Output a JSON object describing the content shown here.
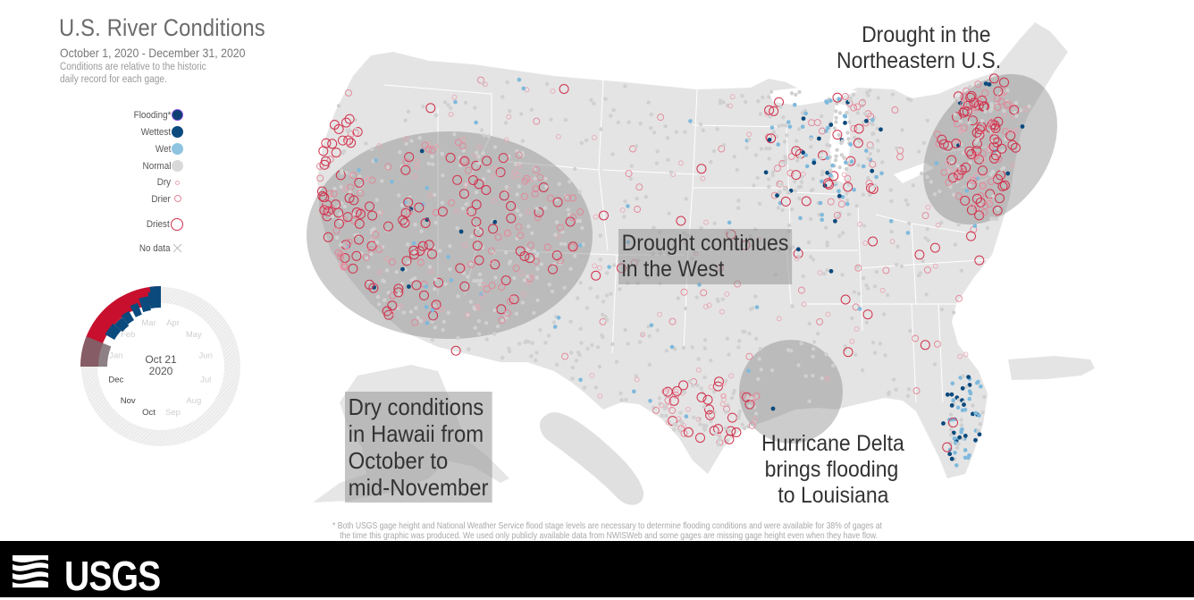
{
  "header": {
    "title": "U.S. River Conditions",
    "dates": "October 1, 2020 - December 31, 2020",
    "subtitle_line1": "Conditions are relative to the historic",
    "subtitle_line2": "daily record for each gage."
  },
  "legend": {
    "items": [
      {
        "label": "Flooding*",
        "icon": "flooding-dot-icon",
        "color": "#0b3f72",
        "stroke": "#8b4fe0"
      },
      {
        "label": "Wettest",
        "icon": "wettest-dot-icon",
        "color": "#0b4a7d"
      },
      {
        "label": "Wet",
        "icon": "wet-dot-icon",
        "color": "#8ec4e0"
      },
      {
        "label": "Normal",
        "icon": "normal-dot-icon",
        "color": "#d9d9d9"
      },
      {
        "label": "Dry",
        "icon": "dry-circle-icon",
        "color": "#eaa6b4"
      },
      {
        "label": "Drier",
        "icon": "drier-circle-icon",
        "color": "#e38496"
      },
      {
        "label": "Driest",
        "icon": "driest-circle-icon",
        "color": "#d0324d"
      },
      {
        "label": "No data",
        "icon": "no-data-x-icon",
        "color": "#bbbbbb"
      }
    ]
  },
  "timeline": {
    "current_date_line1": "Oct 21",
    "current_date_line2": "2020",
    "months": [
      "Jan",
      "Feb",
      "Mar",
      "Apr",
      "May",
      "Jun",
      "Jul",
      "Aug",
      "Sep",
      "Oct",
      "Nov",
      "Dec"
    ],
    "active_months": [
      "Oct",
      "Nov",
      "Dec"
    ],
    "colors": {
      "dry": "#c8102e",
      "wet": "#0b4a7d",
      "track": "#e8e8e8"
    }
  },
  "annotations": {
    "west_line1": "Drought continues",
    "west_line2": "in the West",
    "northeast_line1": "Drought in the",
    "northeast_line2": "Northeastern U.S.",
    "hawaii_line1": "Dry conditions",
    "hawaii_line2": "in Hawaii from",
    "hawaii_line3": "October to",
    "hawaii_line4": "mid-November",
    "louisiana_line1": "Hurricane Delta",
    "louisiana_line2": "brings flooding",
    "louisiana_line3": "to Louisiana"
  },
  "footnote": {
    "line1": "* Both USGS gage height and National Weather Service flood stage levels are necessary to determine flooding conditions and were available for 38% of gages at",
    "line2": "the time this graphic was produced. We used only publicly available data from NWISWeb and some gages are missing gage height even when they have flow."
  },
  "footer": {
    "logo_text": "USGS"
  },
  "map_colors": {
    "land": "#e4e4e4",
    "highlight": "rgba(120,120,120,0.35)"
  }
}
